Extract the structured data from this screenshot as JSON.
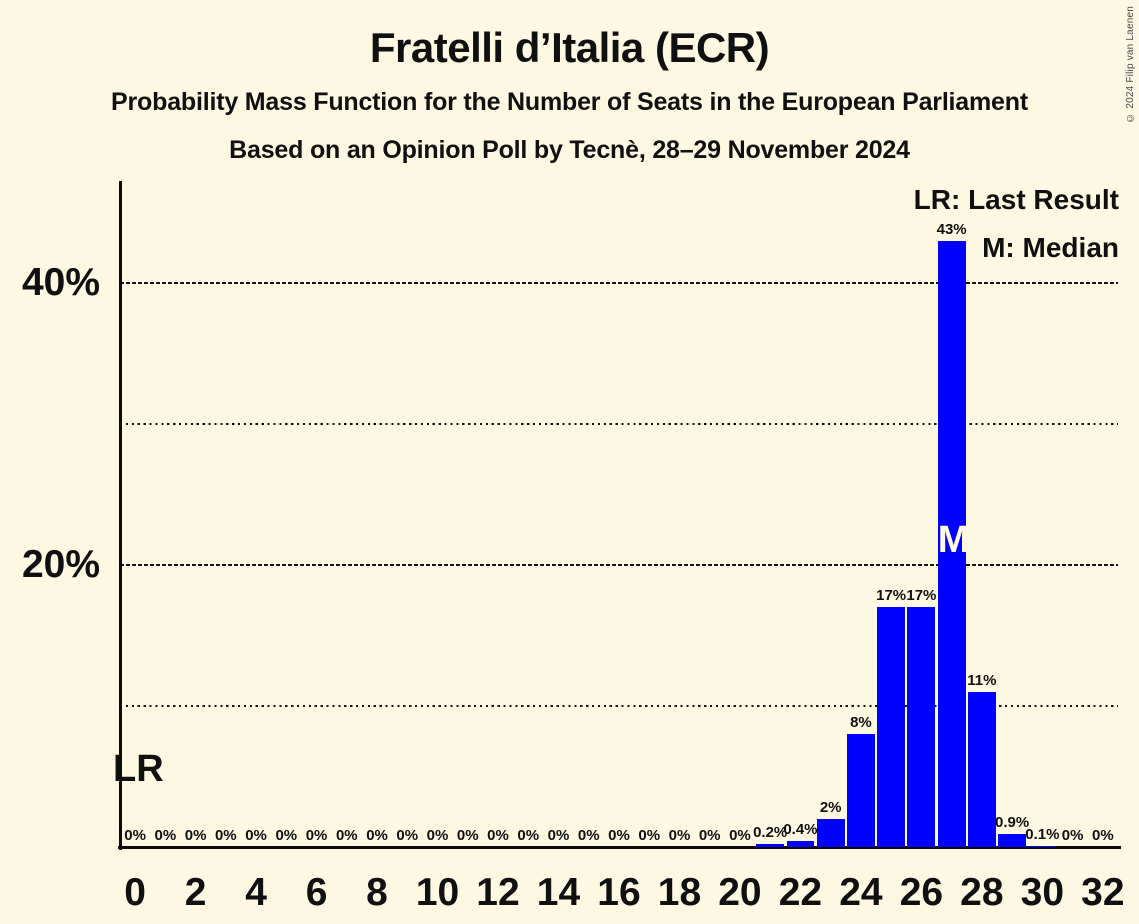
{
  "header": {
    "title": "Fratelli d’Italia (ECR)",
    "subtitle1": "Probability Mass Function for the Number of Seats in the European Parliament",
    "subtitle2": "Based on an Opinion Poll by Tecnè, 28–29 November 2024",
    "copyright": "© 2024 Filip van Laenen"
  },
  "legend": {
    "last_result": "LR: Last Result",
    "median": "M: Median"
  },
  "annotations": {
    "last_result_label": "LR",
    "median_label": "M"
  },
  "colors": {
    "background": "#FCF8E2",
    "bar": "#0000FF",
    "text": "#101010",
    "gridline": "#141414",
    "median_letter": "#FCF8E2"
  },
  "chart_data": {
    "type": "bar",
    "title": "Fratelli d’Italia (ECR)",
    "x": [
      0,
      1,
      2,
      3,
      4,
      5,
      6,
      7,
      8,
      9,
      10,
      11,
      12,
      13,
      14,
      15,
      16,
      17,
      18,
      19,
      20,
      21,
      22,
      23,
      24,
      25,
      26,
      27,
      28,
      29,
      30,
      31,
      32
    ],
    "values": [
      0,
      0,
      0,
      0,
      0,
      0,
      0,
      0,
      0,
      0,
      0,
      0,
      0,
      0,
      0,
      0,
      0,
      0,
      0,
      0,
      0,
      0.2,
      0.4,
      2,
      8,
      17,
      17,
      43,
      11,
      0.9,
      0.1,
      0,
      0
    ],
    "bar_labels": [
      "0%",
      "0%",
      "0%",
      "0%",
      "0%",
      "0%",
      "0%",
      "0%",
      "0%",
      "0%",
      "0%",
      "0%",
      "0%",
      "0%",
      "0%",
      "0%",
      "0%",
      "0%",
      "0%",
      "0%",
      "0%",
      "0.2%",
      "0.4%",
      "2%",
      "8%",
      "17%",
      "17%",
      "43%",
      "11%",
      "0.9%",
      "0.1%",
      "0%",
      "0%"
    ],
    "x_tick_labels": [
      "0",
      "2",
      "4",
      "6",
      "8",
      "10",
      "12",
      "14",
      "16",
      "18",
      "20",
      "22",
      "24",
      "26",
      "28",
      "30",
      "32"
    ],
    "x_tick_step": 2,
    "y_ticks": [
      {
        "pct": 20,
        "label": "20%"
      },
      {
        "pct": 40,
        "label": "40%"
      }
    ],
    "dashed_gridlines_pct": [
      20,
      40
    ],
    "dotted_gridlines_pct": [
      10,
      30
    ],
    "ylim": [
      0,
      47
    ],
    "median_seat": 27,
    "legend_position": "top-right",
    "grid": "horizontal-only"
  }
}
